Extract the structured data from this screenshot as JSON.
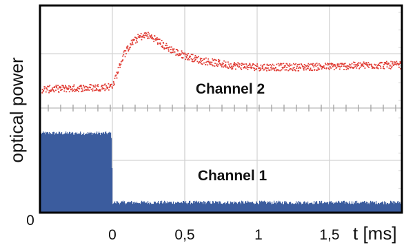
{
  "chart_data": {
    "type": "scatter",
    "ylabel": "optical power",
    "xlabel": "t [ms]",
    "x_ticks": [
      {
        "value": 0,
        "label": "0"
      },
      {
        "value": 0.5,
        "label": "0,5"
      },
      {
        "value": 1,
        "label": "1"
      },
      {
        "value": 1.5,
        "label": "1,5"
      }
    ],
    "xlim": [
      -0.5,
      2.0
    ],
    "y_zero_label": "0",
    "grid": true,
    "colors": {
      "channel_2": "#e03a32",
      "channel_1": "#3b5c9e",
      "grid": "#d3d3d3",
      "frame": "#000000",
      "plot_background": "#ffffff"
    },
    "series": [
      {
        "name": "Channel 2",
        "style": "noisy-dots",
        "units": "relative",
        "points": [
          [
            -0.5,
            0.17
          ],
          [
            -0.3,
            0.18
          ],
          [
            -0.1,
            0.19
          ],
          [
            -0.02,
            0.2
          ],
          [
            0.0,
            0.23
          ],
          [
            0.03,
            0.35
          ],
          [
            0.07,
            0.52
          ],
          [
            0.12,
            0.64
          ],
          [
            0.18,
            0.71
          ],
          [
            0.23,
            0.73
          ],
          [
            0.28,
            0.7
          ],
          [
            0.35,
            0.62
          ],
          [
            0.45,
            0.54
          ],
          [
            0.6,
            0.47
          ],
          [
            0.8,
            0.42
          ],
          [
            1.0,
            0.4
          ],
          [
            1.3,
            0.4
          ],
          [
            1.6,
            0.41
          ],
          [
            1.8,
            0.42
          ],
          [
            2.0,
            0.42
          ]
        ]
      },
      {
        "name": "Channel 1",
        "style": "filled-noise",
        "units": "relative",
        "points": [
          [
            -0.5,
            0.78
          ],
          [
            -0.01,
            0.78
          ],
          [
            0.0,
            0.1
          ],
          [
            2.0,
            0.1
          ]
        ]
      }
    ]
  }
}
